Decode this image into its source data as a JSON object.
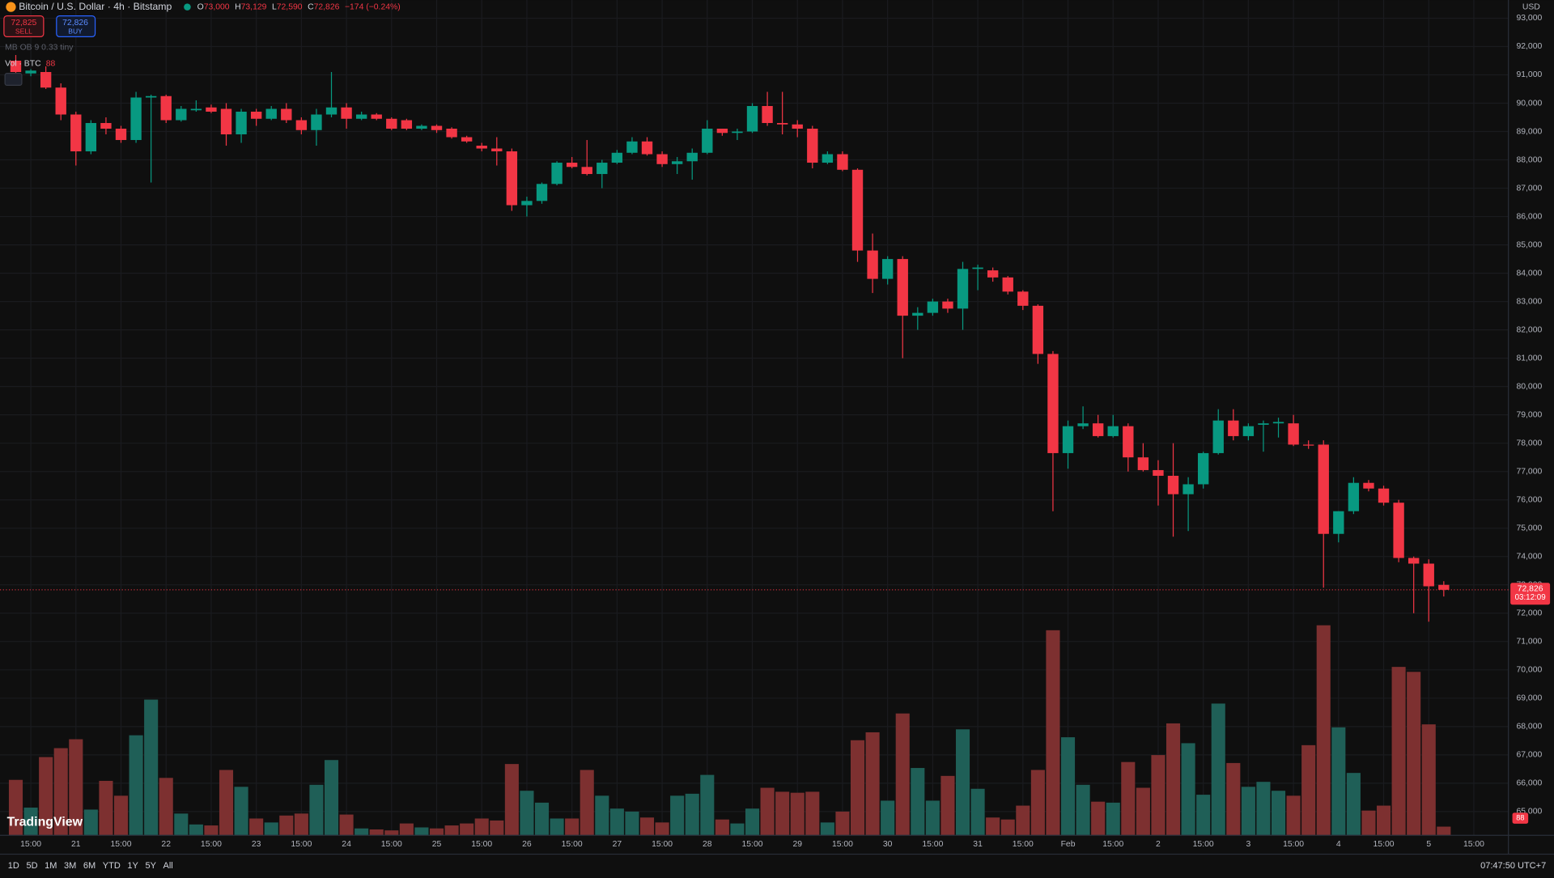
{
  "chart_data": {
    "type": "candlestick",
    "header": {
      "symbol": "Bitcoin / U.S. Dollar · 4h · Bitstamp",
      "o_key": "O",
      "o": "73,000",
      "h_key": "H",
      "h": "73,129",
      "l_key": "L",
      "l": "72,590",
      "c_key": "C",
      "c": "72,826",
      "change": "−174 (−0.24%)"
    },
    "trade": {
      "sell_price": "72,825",
      "sell": "SELL",
      "buy_price": "72,826",
      "buy": "BUY"
    },
    "indicator": "MB OB 9 0.33 tiny",
    "currency": "USD",
    "last_price_label": "72,826",
    "countdown": "03:12:09",
    "logo": "TradingView",
    "ranges": [
      "1D",
      "5D",
      "1M",
      "3M",
      "6M",
      "YTD",
      "1Y",
      "5Y",
      "All"
    ],
    "clock": "07:47:50 UTC+7",
    "up_color": "#089981",
    "down_color": "#f23645",
    "volume_up_color": "#1f5f57",
    "volume_down_color": "#7d3030",
    "grid": true,
    "open": [
      91500,
      91050,
      91100,
      90550,
      89600,
      88300,
      89300,
      89100,
      88700,
      90200,
      90250,
      89400,
      89750,
      89850,
      89800,
      88900,
      89700,
      89450,
      89800,
      89400,
      89050,
      89600,
      89850,
      89450,
      89600,
      89450,
      89400,
      89100,
      89200,
      89100,
      88800,
      88500,
      88400,
      88300,
      86400,
      86550,
      87150,
      87900,
      87750,
      87500,
      87900,
      88250,
      88650,
      88200,
      87850,
      87950,
      88250,
      89100,
      88950,
      89000,
      89900,
      89300,
      89250,
      89100,
      87900,
      88200,
      87650,
      84800,
      83800,
      84500,
      82500,
      82600,
      83000,
      82750,
      84150,
      84100,
      83850,
      83350,
      82850,
      81150,
      77650,
      78600,
      78700,
      78250,
      78600,
      77500,
      77050,
      76850,
      76200,
      76550,
      77650,
      78800,
      78250,
      78650,
      78700,
      78700,
      77950,
      77950,
      74800,
      75600,
      76600,
      76400,
      75900,
      73950,
      73750,
      73000
    ],
    "high": [
      91700,
      91200,
      91300,
      90700,
      89700,
      89400,
      89500,
      89200,
      90400,
      90300,
      90300,
      89900,
      90100,
      89950,
      90000,
      89800,
      89800,
      89900,
      90000,
      89500,
      89800,
      91100,
      90000,
      89700,
      89650,
      89500,
      89450,
      89250,
      89250,
      89150,
      88850,
      88600,
      88800,
      88400,
      86700,
      87200,
      87950,
      88100,
      88700,
      88000,
      88350,
      88800,
      88800,
      88300,
      88100,
      88400,
      89400,
      89100,
      89100,
      90000,
      90400,
      90400,
      89400,
      89200,
      88300,
      88300,
      87700,
      85400,
      84600,
      84600,
      82800,
      83100,
      83100,
      84400,
      84300,
      84200,
      83900,
      83400,
      82900,
      81250,
      78800,
      79300,
      79000,
      79000,
      78700,
      78000,
      77400,
      78000,
      76800,
      77700,
      79200,
      79200,
      78700,
      78800,
      78900,
      79000,
      78100,
      78100,
      75600,
      76800,
      76700,
      76500,
      76000,
      74000,
      73900,
      73129
    ],
    "low": [
      91000,
      90950,
      90500,
      89400,
      87800,
      88200,
      88900,
      88600,
      88600,
      87200,
      89300,
      89350,
      89700,
      89650,
      88500,
      88600,
      89200,
      89400,
      89300,
      88900,
      88500,
      89500,
      89100,
      89400,
      89400,
      89050,
      89050,
      89050,
      88950,
      88750,
      88600,
      88300,
      87800,
      86200,
      86000,
      86450,
      87100,
      87700,
      87450,
      87000,
      87850,
      88200,
      88150,
      87750,
      87500,
      87300,
      88200,
      88850,
      88700,
      88950,
      89200,
      88900,
      88800,
      87700,
      87850,
      87600,
      84400,
      83300,
      83600,
      81000,
      82000,
      82500,
      82600,
      82000,
      83400,
      83700,
      83250,
      82700,
      80800,
      75600,
      77100,
      78500,
      78200,
      78200,
      77000,
      77000,
      75800,
      74700,
      74900,
      76400,
      77600,
      78100,
      78100,
      77700,
      78200,
      77900,
      77800,
      72900,
      74500,
      75500,
      76300,
      75800,
      73800,
      72000,
      71700,
      72590
    ],
    "close": [
      91100,
      91150,
      90550,
      89600,
      88300,
      89300,
      89100,
      88700,
      90200,
      90250,
      89400,
      89800,
      89800,
      89700,
      88900,
      89700,
      89450,
      89800,
      89400,
      89050,
      89600,
      89850,
      89450,
      89600,
      89450,
      89100,
      89100,
      89200,
      89050,
      88800,
      88650,
      88400,
      88300,
      86400,
      86550,
      87150,
      87900,
      87750,
      87500,
      87900,
      88250,
      88650,
      88200,
      87850,
      87950,
      88250,
      89100,
      88950,
      89000,
      89900,
      89300,
      89250,
      89100,
      87900,
      88200,
      87650,
      84800,
      83800,
      84500,
      82500,
      82600,
      83000,
      82750,
      84150,
      84200,
      83850,
      83350,
      82850,
      81150,
      77650,
      78600,
      78700,
      78250,
      78600,
      77500,
      77050,
      76850,
      76200,
      76550,
      77650,
      78800,
      78250,
      78600,
      78700,
      78750,
      77950,
      77920,
      74800,
      75600,
      76600,
      76400,
      75900,
      73950,
      73750,
      72950,
      72826
    ],
    "volume": {
      "name": "Vol · BTC",
      "values": [
        560,
        280,
        790,
        880,
        970,
        260,
        550,
        400,
        1010,
        1370,
        580,
        220,
        110,
        100,
        660,
        490,
        170,
        130,
        200,
        220,
        510,
        760,
        210,
        70,
        60,
        50,
        120,
        80,
        70,
        100,
        120,
        170,
        150,
        720,
        450,
        330,
        170,
        170,
        660,
        400,
        270,
        240,
        180,
        130,
        400,
        420,
        610,
        160,
        120,
        270,
        480,
        440,
        430,
        440,
        130,
        240,
        960,
        1040,
        350,
        1230,
        680,
        350,
        600,
        1070,
        470,
        180,
        160,
        300,
        660,
        2070,
        990,
        510,
        340,
        330,
        740,
        480,
        810,
        1130,
        930,
        410,
        1330,
        730,
        490,
        540,
        450,
        400,
        910,
        2120,
        1090,
        630,
        250,
        300,
        1700,
        1650,
        1120,
        88
      ]
    },
    "vol_ylim": [
      0,
      2300
    ],
    "ylim": [
      64160,
      93640
    ],
    "yticks": [
      {
        "value": 65000,
        "label": "65,000"
      },
      {
        "value": 66000,
        "label": "66,000"
      },
      {
        "value": 67000,
        "label": "67,000"
      },
      {
        "value": 68000,
        "label": "68,000"
      },
      {
        "value": 69000,
        "label": "69,000"
      },
      {
        "value": 70000,
        "label": "70,000"
      },
      {
        "value": 71000,
        "label": "71,000"
      },
      {
        "value": 72000,
        "label": "72,000"
      },
      {
        "value": 73000,
        "label": "73,000"
      },
      {
        "value": 74000,
        "label": "74,000"
      },
      {
        "value": 75000,
        "label": "75,000"
      },
      {
        "value": 76000,
        "label": "76,000"
      },
      {
        "value": 77000,
        "label": "77,000"
      },
      {
        "value": 78000,
        "label": "78,000"
      },
      {
        "value": 79000,
        "label": "79,000"
      },
      {
        "value": 80000,
        "label": "80,000"
      },
      {
        "value": 81000,
        "label": "81,000"
      },
      {
        "value": 82000,
        "label": "82,000"
      },
      {
        "value": 83000,
        "label": "83,000"
      },
      {
        "value": 84000,
        "label": "84,000"
      },
      {
        "value": 85000,
        "label": "85,000"
      },
      {
        "value": 86000,
        "label": "86,000"
      },
      {
        "value": 87000,
        "label": "87,000"
      },
      {
        "value": 88000,
        "label": "88,000"
      },
      {
        "value": 89000,
        "label": "89,000"
      },
      {
        "value": 90000,
        "label": "90,000"
      },
      {
        "value": 91000,
        "label": "91,000"
      },
      {
        "value": 92000,
        "label": "92,000"
      },
      {
        "value": 93000,
        "label": "93,000"
      }
    ],
    "xlim": [
      -1.05,
      99.3
    ],
    "xticks": [
      {
        "value": 1,
        "label": "15:00"
      },
      {
        "value": 4,
        "label": "21"
      },
      {
        "value": 7,
        "label": "15:00"
      },
      {
        "value": 10,
        "label": "22"
      },
      {
        "value": 13,
        "label": "15:00"
      },
      {
        "value": 16,
        "label": "23"
      },
      {
        "value": 19,
        "label": "15:00"
      },
      {
        "value": 22,
        "label": "24"
      },
      {
        "value": 25,
        "label": "15:00"
      },
      {
        "value": 28,
        "label": "25"
      },
      {
        "value": 31,
        "label": "15:00"
      },
      {
        "value": 34,
        "label": "26"
      },
      {
        "value": 37,
        "label": "15:00"
      },
      {
        "value": 40,
        "label": "27"
      },
      {
        "value": 43,
        "label": "15:00"
      },
      {
        "value": 46,
        "label": "28"
      },
      {
        "value": 49,
        "label": "15:00"
      },
      {
        "value": 52,
        "label": "29"
      },
      {
        "value": 55,
        "label": "15:00"
      },
      {
        "value": 58,
        "label": "30"
      },
      {
        "value": 61,
        "label": "15:00"
      },
      {
        "value": 64,
        "label": "31"
      },
      {
        "value": 67,
        "label": "15:00"
      },
      {
        "value": 70,
        "label": "Feb"
      },
      {
        "value": 73,
        "label": "15:00"
      },
      {
        "value": 76,
        "label": "2"
      },
      {
        "value": 79,
        "label": "15:00"
      },
      {
        "value": 82,
        "label": "3"
      },
      {
        "value": 85,
        "label": "15:00"
      },
      {
        "value": 88,
        "label": "4"
      },
      {
        "value": 91,
        "label": "15:00"
      },
      {
        "value": 94,
        "label": "5"
      },
      {
        "value": 97,
        "label": "15:00"
      }
    ]
  }
}
